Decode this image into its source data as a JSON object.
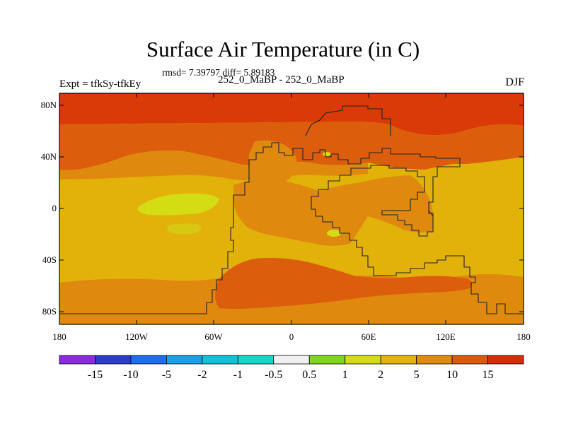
{
  "title": "Surface Air Temperature (in C)",
  "stats": "rmsd= 7.39797 diff= 5.89183",
  "experiment_label": "Expt = tfkSy-tfkEy",
  "center_label": "252_0_MaBP - 252_0_MaBP",
  "season": "DJF",
  "lat_ticks": [
    "80N",
    "40N",
    "0",
    "40S",
    "80S"
  ],
  "lon_ticks": [
    "180",
    "120W",
    "60W",
    "0",
    "60E",
    "120E",
    "180"
  ],
  "colorbar": {
    "colors": [
      "#8a2be2",
      "#2a3bd0",
      "#1e6cf0",
      "#1aa0e8",
      "#10c2d8",
      "#14d8c8",
      "#f0f0f0",
      "#7fd71a",
      "#d4dc14",
      "#e3b40a",
      "#df8c0e",
      "#dc5a0c",
      "#d82c08"
    ],
    "labels": [
      "-15",
      "-10",
      "-5",
      "-2",
      "-1",
      "-0.5",
      "0.5",
      "1",
      "2",
      "5",
      "10",
      "15"
    ]
  }
}
